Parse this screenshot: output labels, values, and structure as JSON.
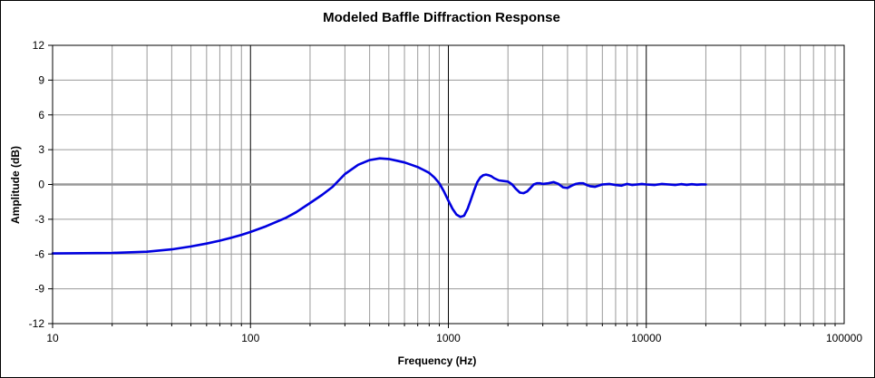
{
  "chart_data": {
    "type": "line",
    "title": "Modeled Baffle Diffraction Response",
    "xlabel": "Frequency (Hz)",
    "ylabel": "Amplitude (dB)",
    "x_scale": "log",
    "xlim": [
      10,
      100000
    ],
    "ylim": [
      -12,
      12
    ],
    "x_ticks": [
      "10",
      "100",
      "1000",
      "10000",
      "100000"
    ],
    "y_ticks": [
      "12",
      "9",
      "6",
      "3",
      "0",
      "-3",
      "-6",
      "-9",
      "-12"
    ],
    "grid": true,
    "colors": {
      "series": "#0000e0",
      "zero_line": "#999999",
      "grid": "#9a9a9a",
      "major_grid": "#000000"
    },
    "series": [
      {
        "x": [
          10,
          20,
          30,
          40,
          50,
          60,
          70,
          80,
          90,
          100,
          120,
          150,
          170,
          200,
          230,
          260,
          300,
          350,
          400,
          450,
          500,
          550,
          600,
          650,
          700,
          750,
          800,
          850,
          900,
          950,
          1000,
          1050,
          1100,
          1150,
          1200,
          1250,
          1300,
          1350,
          1400,
          1450,
          1500,
          1550,
          1600,
          1650,
          1700,
          1800,
          1900,
          2000,
          2100,
          2200,
          2300,
          2400,
          2500,
          2600,
          2700,
          2800,
          2900,
          3000,
          3200,
          3400,
          3600,
          3800,
          4000,
          4200,
          4400,
          4600,
          4800,
          5000,
          5200,
          5500,
          6000,
          6500,
          7000,
          7500,
          8000,
          8500,
          9000,
          9500,
          10000,
          11000,
          12000,
          13000,
          14000,
          15000,
          16000,
          17000,
          18000,
          19000,
          20000
        ],
        "y": [
          -5.95,
          -5.9,
          -5.8,
          -5.6,
          -5.35,
          -5.1,
          -4.85,
          -4.6,
          -4.35,
          -4.1,
          -3.6,
          -2.9,
          -2.4,
          -1.6,
          -0.9,
          -0.2,
          0.9,
          1.7,
          2.1,
          2.25,
          2.2,
          2.05,
          1.9,
          1.7,
          1.5,
          1.25,
          1.0,
          0.6,
          0.1,
          -0.6,
          -1.4,
          -2.1,
          -2.6,
          -2.8,
          -2.7,
          -2.1,
          -1.3,
          -0.5,
          0.2,
          0.6,
          0.8,
          0.85,
          0.8,
          0.7,
          0.55,
          0.35,
          0.3,
          0.25,
          0.0,
          -0.4,
          -0.7,
          -0.75,
          -0.6,
          -0.3,
          0.0,
          0.1,
          0.1,
          0.05,
          0.1,
          0.2,
          0.05,
          -0.25,
          -0.3,
          -0.1,
          0.05,
          0.1,
          0.1,
          -0.05,
          -0.15,
          -0.2,
          0.0,
          0.05,
          -0.05,
          -0.1,
          0.05,
          -0.05,
          0.0,
          0.05,
          0.0,
          -0.05,
          0.05,
          0.0,
          -0.05,
          0.03,
          -0.03,
          0.02,
          -0.02,
          0.01,
          0.0
        ]
      }
    ]
  }
}
